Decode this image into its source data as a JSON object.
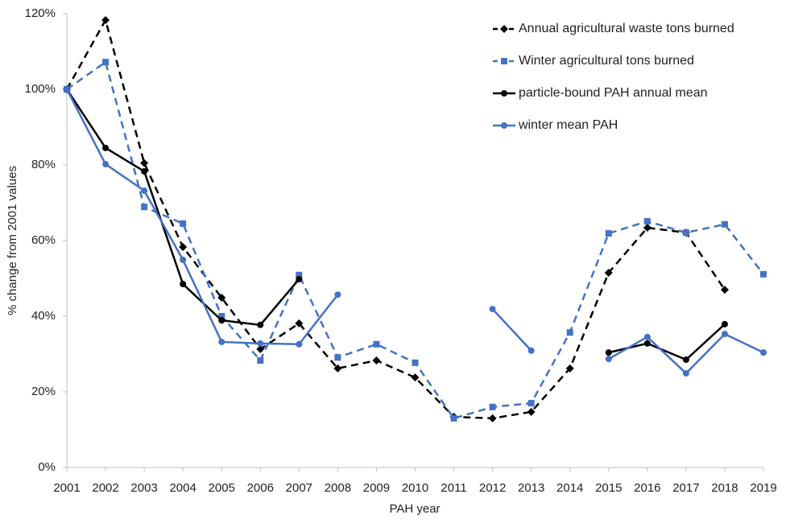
{
  "chart_data": {
    "type": "line",
    "x_label": "PAH year",
    "y_label": "% change from 2001 values",
    "categories": [
      "2001",
      "2002",
      "2003",
      "2004",
      "2005",
      "2006",
      "2007",
      "2008",
      "2009",
      "2010",
      "2011",
      "2012",
      "2013",
      "2014",
      "2015",
      "2016",
      "2017",
      "2018",
      "2019"
    ],
    "ylim": [
      0,
      120
    ],
    "yticks": [
      {
        "value": 0,
        "label": "0%"
      },
      {
        "value": 20,
        "label": "20%"
      },
      {
        "value": 40,
        "label": "40%"
      },
      {
        "value": 60,
        "label": "60%"
      },
      {
        "value": 80,
        "label": "80%"
      },
      {
        "value": 100,
        "label": "100%"
      },
      {
        "value": 120,
        "label": "120%"
      }
    ],
    "grid": false,
    "legend": "upper right",
    "series": [
      {
        "name": "Annual agricultural waste tons burned",
        "color": "#000000",
        "dashed": true,
        "marker": "diamond",
        "values": [
          100,
          118.3,
          80.5,
          58.3,
          44.9,
          31.3,
          38.1,
          26.2,
          28.3,
          23.8,
          13.4,
          13,
          14.7,
          26.2,
          51.5,
          63.4,
          62.1,
          47,
          null
        ]
      },
      {
        "name": "Winter agricultural tons burned",
        "color": "#4472c4",
        "dashed": true,
        "marker": "square",
        "values": [
          100,
          107.2,
          68.9,
          64.5,
          40,
          28.3,
          50.9,
          29.1,
          32.6,
          27.7,
          13,
          16,
          17,
          35.7,
          61.9,
          65.1,
          62.1,
          64.3,
          51.1
        ]
      },
      {
        "name": "particle-bound PAH annual mean",
        "color": "#000000",
        "dashed": false,
        "marker": "circle",
        "values": [
          100,
          84.5,
          78.3,
          48.5,
          38.9,
          37.7,
          49.8,
          null,
          null,
          null,
          null,
          null,
          null,
          null,
          30.4,
          32.8,
          28.5,
          37.9,
          null
        ]
      },
      {
        "name": "winter mean PAH",
        "color": "#4472c4",
        "dashed": false,
        "marker": "circle",
        "values": [
          100,
          80.2,
          73.2,
          54.9,
          33.2,
          32.8,
          32.6,
          45.7,
          null,
          null,
          null,
          41.9,
          30.9,
          null,
          28.7,
          34.5,
          24.9,
          35.3,
          30.4
        ]
      }
    ]
  }
}
